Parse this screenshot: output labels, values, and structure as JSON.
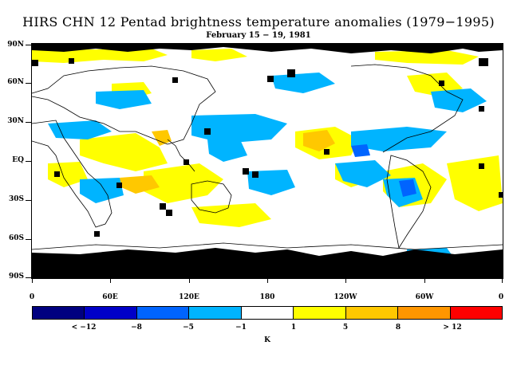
{
  "title": "HIRS CHN 12 Pentad brightness temperature anomalies (1979−1995)",
  "subtitle": "February 15 − 19, 1981",
  "lat_labels": [
    "90N",
    "60N",
    "30N",
    "EQ",
    "30S",
    "60S",
    "90S"
  ],
  "lon_labels": [
    "0",
    "60E",
    "120E",
    "180",
    "120W",
    "60W",
    "0"
  ],
  "colorbar": {
    "colors": [
      "#000080",
      "#0000c8",
      "#0064ff",
      "#00b4ff",
      "#ffffff",
      "#ffff00",
      "#ffc800",
      "#ff9600",
      "#ff0000"
    ],
    "labels": [
      "< −12",
      "−8",
      "−5",
      "−1",
      "1",
      "5",
      "8",
      "> 12"
    ],
    "unit": "K"
  },
  "map_colors": {
    "missing": "#000000",
    "cool": "#00b4ff",
    "mid_cool": "#0064ff",
    "warm": "#ffff00",
    "mid_warm": "#ffc800",
    "coast": "#000000"
  }
}
